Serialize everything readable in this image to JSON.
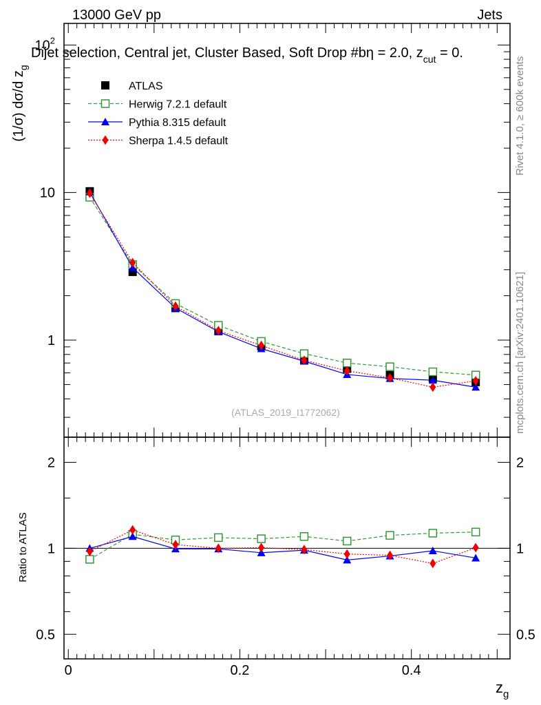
{
  "header": {
    "left": "13000 GeV pp",
    "right": "Jets",
    "selection": "Dijet selection, Central jet, Cluster Based, Soft Drop #b",
    "selection_tail_eq": " = 2.0, z",
    "selection_tail_sub": "cut",
    "selection_tail_end": " = 0."
  },
  "side_labels": {
    "rivet": "Rivet 4.1.0, ≥ 600k events",
    "mcplots": "mcplots.cern.ch [arXiv:2401.10621]"
  },
  "watermark": "(ATLAS_2019_I1772062)",
  "chart_data": [
    {
      "id": "main",
      "type": "scatter",
      "yscale": "log",
      "xlim": [
        -0.005,
        0.515
      ],
      "ylim": [
        0.22,
        140
      ],
      "ylabel_text": "(1/σ) dσ/d z",
      "ylabel_sub": "g",
      "ytick_labels": [
        {
          "value": 1,
          "label": "1"
        },
        {
          "value": 10,
          "label": "10"
        },
        {
          "value": 100,
          "label": "10",
          "sup": "2"
        }
      ],
      "x": [
        0.025,
        0.075,
        0.125,
        0.175,
        0.225,
        0.275,
        0.325,
        0.375,
        0.425,
        0.475
      ],
      "series": [
        {
          "name": "ATLAS",
          "color": "#000000",
          "marker": "square-filled",
          "line": "none",
          "values": [
            10.2,
            2.9,
            1.65,
            1.15,
            0.91,
            0.73,
            0.64,
            0.58,
            0.55,
            0.52
          ]
        },
        {
          "name": "Herwig 7.2.1 default",
          "color": "#339933",
          "marker": "square-open",
          "line": "dashed",
          "values": [
            9.3,
            3.25,
            1.77,
            1.26,
            0.98,
            0.81,
            0.7,
            0.66,
            0.61,
            0.58
          ]
        },
        {
          "name": "Pythia 8.315 default",
          "color": "#0000ee",
          "marker": "triangle",
          "line": "solid",
          "values": [
            10.1,
            3.1,
            1.65,
            1.14,
            0.875,
            0.72,
            0.585,
            0.55,
            0.535,
            0.48
          ]
        },
        {
          "name": "Sherpa 1.4.5 default",
          "color": "#ee0000",
          "marker": "diamond",
          "line": "dotted",
          "values": [
            9.9,
            3.35,
            1.7,
            1.16,
            0.92,
            0.73,
            0.62,
            0.555,
            0.48,
            0.53
          ]
        }
      ]
    },
    {
      "id": "ratio",
      "type": "line",
      "yscale": "log",
      "xlim": [
        -0.005,
        0.515
      ],
      "ylim": [
        0.41,
        2.45
      ],
      "ylabel": "Ratio to ATLAS",
      "xlabel": "z",
      "xlabel_sub": "g",
      "ytick_labels": [
        {
          "value": 0.5,
          "label": "0.5"
        },
        {
          "value": 1,
          "label": "1"
        },
        {
          "value": 2,
          "label": "2"
        }
      ],
      "xtick_labels": [
        {
          "value": 0,
          "label": "0"
        },
        {
          "value": 0.2,
          "label": "0.2"
        },
        {
          "value": 0.4,
          "label": "0.4"
        }
      ],
      "x": [
        0.025,
        0.075,
        0.125,
        0.175,
        0.225,
        0.275,
        0.325,
        0.375,
        0.425,
        0.475
      ],
      "series": [
        {
          "name": "Herwig 7.2.1 default",
          "color": "#339933",
          "marker": "square-open",
          "line": "dashed",
          "values": [
            0.915,
            1.12,
            1.07,
            1.09,
            1.08,
            1.1,
            1.06,
            1.11,
            1.13,
            1.14
          ]
        },
        {
          "name": "Pythia 8.315 default",
          "color": "#0000ee",
          "marker": "triangle",
          "line": "solid",
          "values": [
            1.0,
            1.1,
            0.995,
            0.995,
            0.965,
            0.985,
            0.91,
            0.94,
            0.98,
            0.925
          ]
        },
        {
          "name": "Sherpa 1.4.5 default",
          "color": "#ee0000",
          "marker": "diamond",
          "line": "dotted",
          "values": [
            0.975,
            1.16,
            1.03,
            1.0,
            1.005,
            0.99,
            0.955,
            0.945,
            0.885,
            1.005
          ]
        }
      ]
    }
  ]
}
